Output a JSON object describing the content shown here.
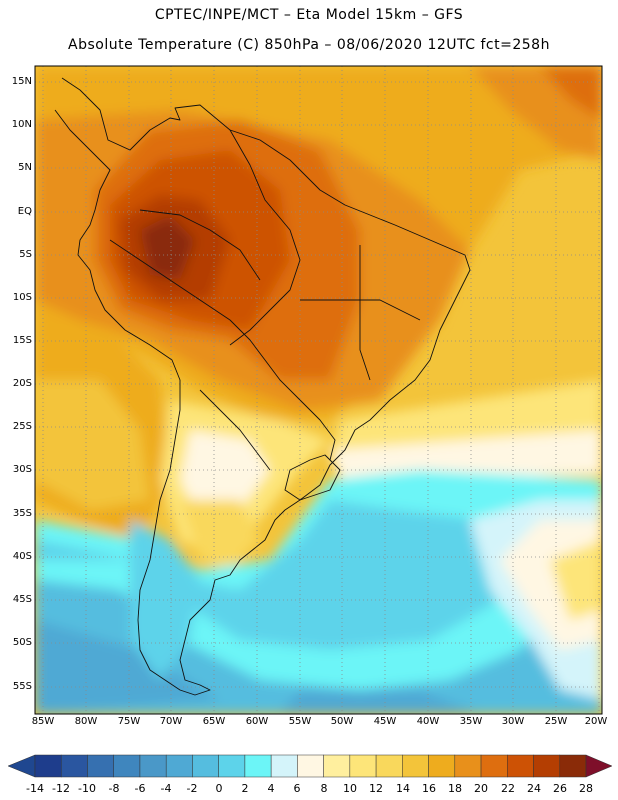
{
  "header": {
    "line1": "CPTEC/INPE/MCT –  Eta Model 15km – GFS",
    "line2": "Absolute Temperature (C) 850hPa – 08/06/2020 12UTC fct=258h"
  },
  "map": {
    "region": "South America",
    "lat_labels": [
      "15N",
      "10N",
      "5N",
      "EQ",
      "5S",
      "10S",
      "15S",
      "20S",
      "25S",
      "30S",
      "35S",
      "40S",
      "45S",
      "50S",
      "55S"
    ],
    "lon_labels": [
      "85W",
      "80W",
      "75W",
      "70W",
      "65W",
      "60W",
      "55W",
      "50W",
      "45W",
      "40W",
      "35W",
      "30W",
      "25W",
      "20W"
    ]
  },
  "colorbar": {
    "labels": [
      "-14",
      "-12",
      "-10",
      "-8",
      "-6",
      "-4",
      "-2",
      "0",
      "2",
      "4",
      "6",
      "8",
      "10",
      "12",
      "14",
      "16",
      "18",
      "20",
      "22",
      "24",
      "26",
      "28"
    ],
    "colors": [
      "#1e3d8c",
      "#2a56a0",
      "#3670b0",
      "#3f86be",
      "#4a98c8",
      "#4fa9d4",
      "#55bddf",
      "#5dd3ea",
      "#6cf5f7",
      "#d4f4fa",
      "#fff7e3",
      "#ffef9e",
      "#fde579",
      "#f9d85c",
      "#f3c43a",
      "#eeac1e",
      "#e8901b",
      "#de6e0f",
      "#cd5205",
      "#b43e02",
      "#8a2b08"
    ],
    "left_arrow": "#1f4790",
    "right_arrow": "#7e0f2a"
  }
}
